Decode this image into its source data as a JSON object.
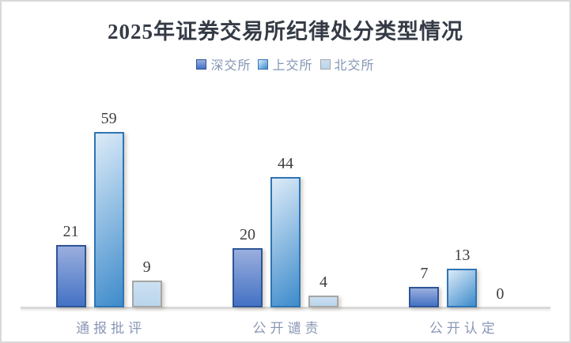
{
  "chart_data": {
    "type": "bar",
    "title": "2025年证券交易所纪律处分类型情况",
    "categories": [
      "通报批评",
      "公开谴责",
      "公开认定"
    ],
    "series": [
      {
        "name": "深交所",
        "values": [
          21,
          20,
          7
        ],
        "fill_top": "#9AAEDE",
        "fill_bottom": "#4472C4",
        "border": "#2E5597",
        "gradient_dir": "180deg"
      },
      {
        "name": "上交所",
        "values": [
          59,
          44,
          13
        ],
        "fill_top": "#DCEBF8",
        "fill_bottom": "#3E8BCB",
        "border": "#2E75B6",
        "gradient_dir": "140deg"
      },
      {
        "name": "北交所",
        "values": [
          9,
          4,
          0
        ],
        "fill_top": "#CCE0F1",
        "fill_bottom": "#BAD5EC",
        "border": "#A6A6A6",
        "gradient_dir": "180deg"
      }
    ],
    "legend_position": "top",
    "grid": false,
    "value_labels": true,
    "ylim": [
      0,
      60
    ]
  },
  "colors": {
    "background": "#FFFFFF",
    "frame_border": "#D9D9D9",
    "title_text": "#353B46",
    "legend_text": "#8496B4",
    "category_text": "#8A97B5",
    "value_label_text": "#3F3F3F",
    "axis_line": "#D9D9D9"
  }
}
